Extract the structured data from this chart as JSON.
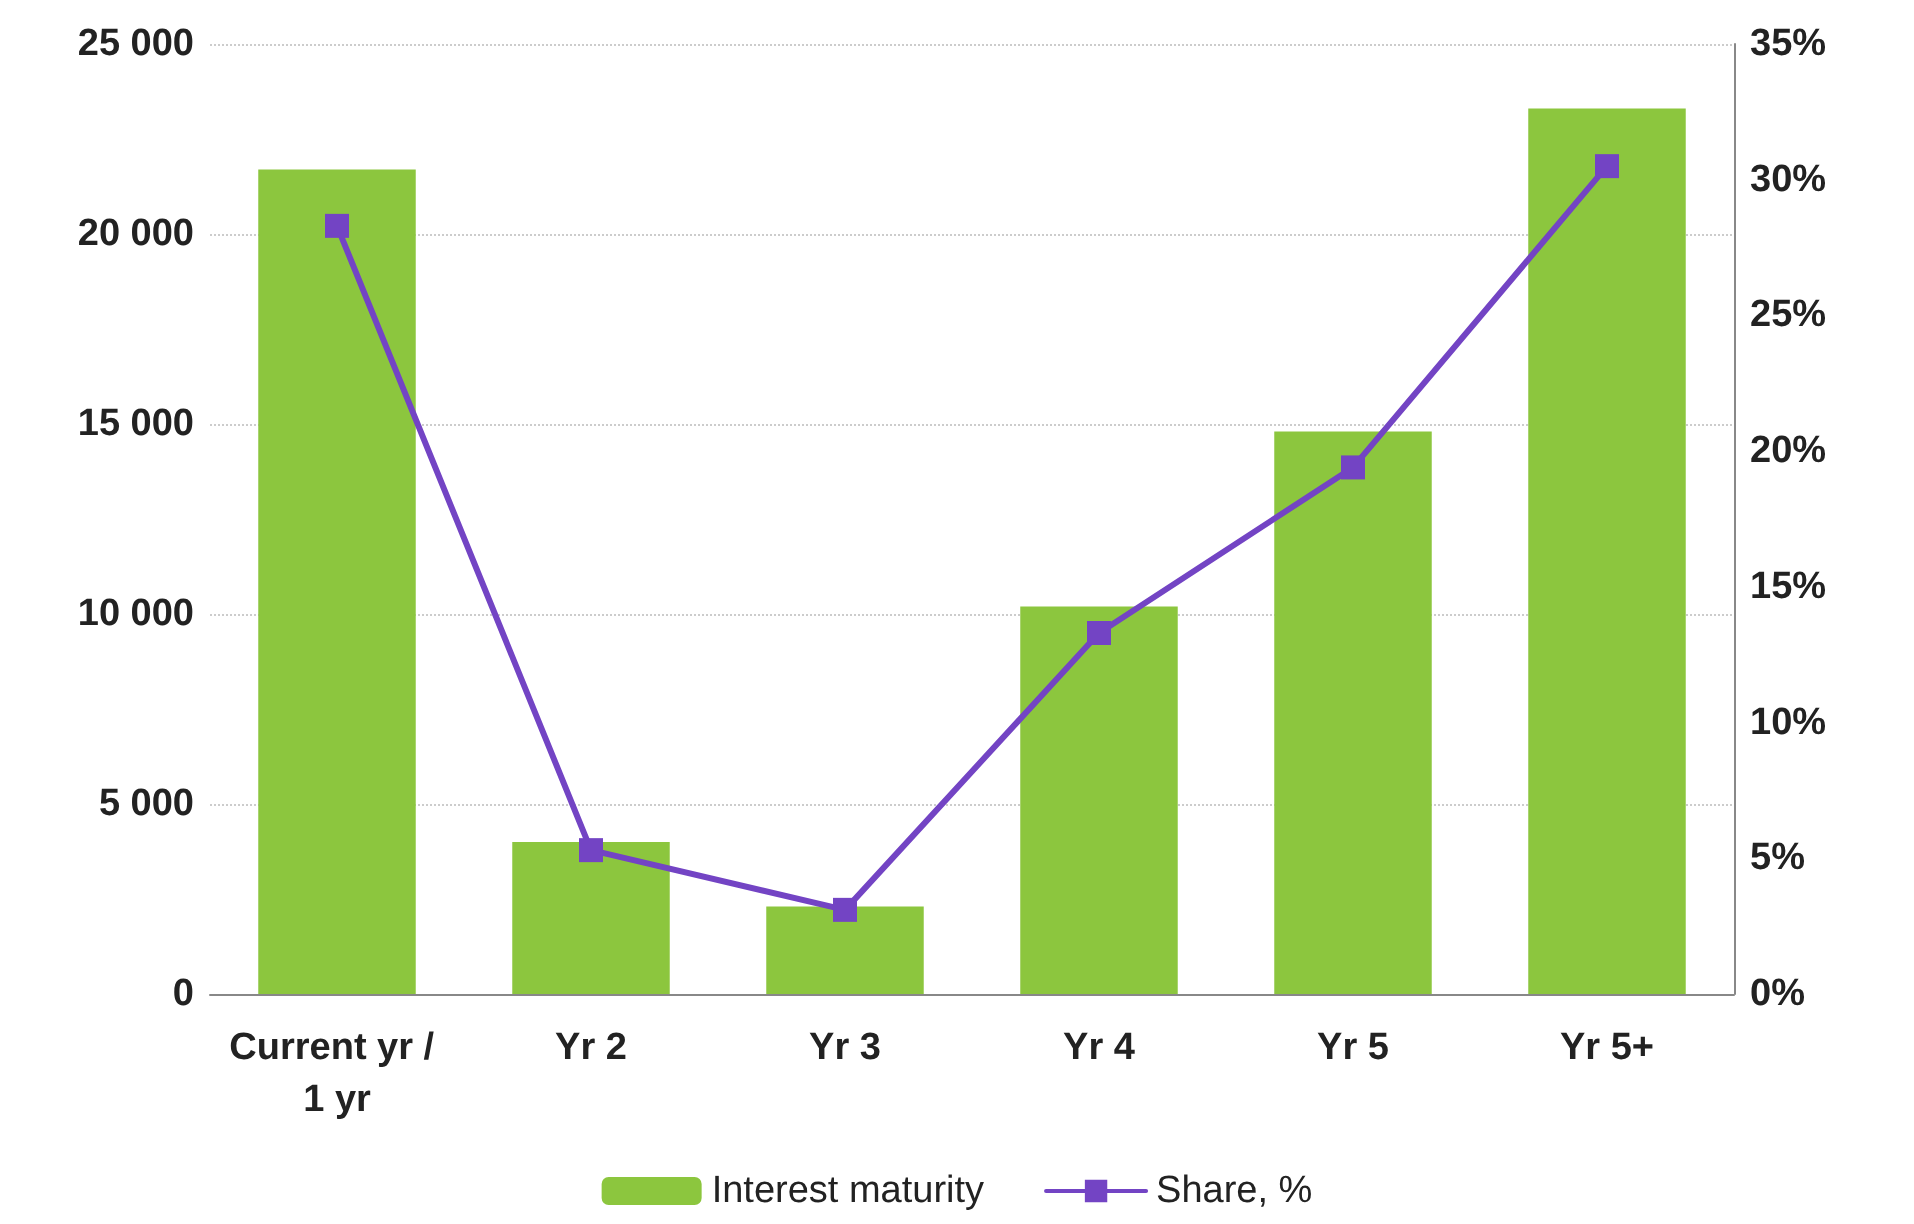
{
  "chart_data": {
    "type": "bar",
    "categories": [
      "Current yr / 1 yr",
      "Yr 2",
      "Yr 3",
      "Yr 4",
      "Yr 5",
      "Yr 5+"
    ],
    "series": [
      {
        "name": "Interest maturity",
        "color": "#8cc63e",
        "values": [
          21700,
          4000,
          2300,
          10200,
          14800,
          23300
        ]
      },
      {
        "name": "Share, %",
        "type": "line",
        "axis": "y2",
        "color": "#7344c4",
        "values": [
          28.3,
          5.3,
          3.1,
          13.3,
          19.4,
          30.5
        ]
      }
    ],
    "ylim": [
      0,
      25000
    ],
    "yticks": [
      {
        "value": 0,
        "label": "0"
      },
      {
        "value": 5000,
        "label": "5 000"
      },
      {
        "value": 10000,
        "label": "10 000"
      },
      {
        "value": 15000,
        "label": "15 000"
      },
      {
        "value": 20000,
        "label": "20 000"
      },
      {
        "value": 25000,
        "label": "25 000"
      }
    ],
    "y2lim": [
      0,
      35
    ],
    "y2ticks": [
      {
        "value": 0,
        "label": "0%"
      },
      {
        "value": 5,
        "label": "5%"
      },
      {
        "value": 10,
        "label": "10%"
      },
      {
        "value": 15,
        "label": "15%"
      },
      {
        "value": 20,
        "label": "20%"
      },
      {
        "value": 25,
        "label": "25%"
      },
      {
        "value": 30,
        "label": "30%"
      },
      {
        "value": 35,
        "label": "35%"
      }
    ],
    "grid": "y",
    "legend": "bottom",
    "marker": "square",
    "line_style": "solid"
  }
}
